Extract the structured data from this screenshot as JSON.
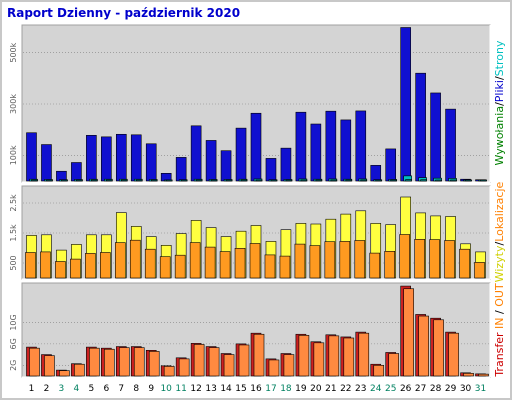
{
  "title": "Raport Dzienny -  październik 2020",
  "colors": {
    "background": "#ffffff",
    "frame": "#c8c8c8",
    "plot_bg": "#d4d4d4",
    "title": "#0000cc",
    "grid": "#808080",
    "weekday_label": "#000000",
    "weekend_label": "#008060",
    "hits": "#1010d0",
    "files": "#00c0c0",
    "pages": "#0a8a8a",
    "visits": "#ffff40",
    "sites": "#ff9a20",
    "kbin": "#cc2020",
    "kbout": "#ff8a40"
  },
  "right_labels": {
    "top": [
      {
        "text": "Wywołania",
        "color": "#008000"
      },
      {
        "text": "/",
        "color": "#000000"
      },
      {
        "text": "Pliki",
        "color": "#0000cc"
      },
      {
        "text": "/",
        "color": "#000000"
      },
      {
        "text": "Strony",
        "color": "#00c0c0"
      }
    ],
    "middle": [
      {
        "text": "Wizyty",
        "color": "#d0d000"
      },
      {
        "text": "/",
        "color": "#000000"
      },
      {
        "text": "Lokalizacje",
        "color": "#ff8000"
      }
    ],
    "bottom": [
      {
        "text": "Transfer",
        "color": "#cc0000"
      },
      {
        "text": " IN ",
        "color": "#ff8000"
      },
      {
        "text": "/",
        "color": "#000000"
      },
      {
        "text": " OUT",
        "color": "#ff8000"
      }
    ]
  },
  "chart_data": [
    {
      "type": "bar",
      "name": "hits-files-pages",
      "categories": [
        "1",
        "2",
        "3",
        "4",
        "5",
        "6",
        "7",
        "8",
        "9",
        "10",
        "11",
        "12",
        "13",
        "14",
        "15",
        "16",
        "17",
        "18",
        "19",
        "20",
        "21",
        "22",
        "23",
        "24",
        "25",
        "26",
        "27",
        "28",
        "29",
        "30",
        "31"
      ],
      "weekend": [
        3,
        4,
        10,
        11,
        17,
        18,
        24,
        25,
        31
      ],
      "ylim": [
        0,
        600000
      ],
      "yticks": [
        {
          "v": 100000,
          "label": "100k"
        },
        {
          "v": 300000,
          "label": "300k"
        },
        {
          "v": 500000,
          "label": "500k"
        }
      ],
      "series": [
        {
          "name": "Wywołania",
          "color_key": "hits",
          "values": [
            188000,
            142000,
            38000,
            72000,
            178000,
            172000,
            182000,
            180000,
            145000,
            30000,
            92000,
            215000,
            158000,
            118000,
            206000,
            264000,
            88000,
            128000,
            268000,
            222000,
            272000,
            238000,
            273000,
            61000,
            125000,
            598000,
            420000,
            343000,
            280000,
            7000,
            5000
          ]
        },
        {
          "name": "Pliki",
          "color_key": "files",
          "values": [
            7000,
            6000,
            5000,
            6000,
            7000,
            7000,
            7000,
            7000,
            6000,
            4000,
            5000,
            7000,
            6000,
            6000,
            7000,
            8000,
            5000,
            6000,
            8000,
            7000,
            8000,
            7000,
            8000,
            5000,
            6000,
            20000,
            13000,
            11000,
            10000,
            3000,
            2000
          ]
        },
        {
          "name": "Strony",
          "color_key": "pages",
          "values": [
            3000,
            3000,
            2000,
            2000,
            3000,
            3000,
            3000,
            3000,
            3000,
            2000,
            2000,
            3000,
            3000,
            3000,
            3000,
            3000,
            2000,
            3000,
            3000,
            3000,
            3000,
            3000,
            3000,
            2000,
            3000,
            6000,
            5000,
            4000,
            4000,
            1000,
            1000
          ]
        }
      ]
    },
    {
      "type": "bar",
      "name": "visits-sites",
      "categories": [
        "1",
        "2",
        "3",
        "4",
        "5",
        "6",
        "7",
        "8",
        "9",
        "10",
        "11",
        "12",
        "13",
        "14",
        "15",
        "16",
        "17",
        "18",
        "19",
        "20",
        "21",
        "22",
        "23",
        "24",
        "25",
        "26",
        "27",
        "28",
        "29",
        "30",
        "31"
      ],
      "weekend": [
        3,
        4,
        10,
        11,
        17,
        18,
        24,
        25,
        31
      ],
      "ylim": [
        0,
        3000
      ],
      "yticks": [
        {
          "v": 500,
          "label": "500"
        },
        {
          "v": 1500,
          "label": "1.5k"
        },
        {
          "v": 2500,
          "label": "2.5k"
        }
      ],
      "series": [
        {
          "name": "Wizyty",
          "color_key": "visits",
          "values": [
            1420,
            1440,
            930,
            1120,
            1440,
            1440,
            2180,
            1720,
            1380,
            1090,
            1480,
            1920,
            1680,
            1380,
            1560,
            1750,
            1220,
            1610,
            1820,
            1800,
            1960,
            2130,
            2240,
            1820,
            1780,
            2700,
            2170,
            2070,
            2050,
            1140,
            870
          ]
        },
        {
          "name": "Lokalizacje",
          "color_key": "sites",
          "values": [
            850,
            870,
            550,
            630,
            820,
            850,
            1180,
            1260,
            960,
            710,
            760,
            1180,
            1030,
            880,
            990,
            1150,
            770,
            730,
            1130,
            1080,
            1210,
            1220,
            1250,
            830,
            890,
            1450,
            1290,
            1280,
            1250,
            960,
            520
          ]
        }
      ]
    },
    {
      "type": "bar",
      "name": "transfer",
      "categories": [
        "1",
        "2",
        "3",
        "4",
        "5",
        "6",
        "7",
        "8",
        "9",
        "10",
        "11",
        "12",
        "13",
        "14",
        "15",
        "16",
        "17",
        "18",
        "19",
        "20",
        "21",
        "22",
        "23",
        "24",
        "25",
        "26",
        "27",
        "28",
        "29",
        "30",
        "31"
      ],
      "weekend": [
        3,
        4,
        10,
        11,
        17,
        18,
        24,
        25,
        31
      ],
      "ylim": [
        0,
        17000
      ],
      "yticks": [
        {
          "v": 2000,
          "label": "2G"
        },
        {
          "v": 6000,
          "label": "6G"
        },
        {
          "v": 10000,
          "label": "10G"
        }
      ],
      "series": [
        {
          "name": "IN",
          "color_key": "kbin",
          "values": [
            5400,
            4000,
            1100,
            2300,
            5400,
            5200,
            5500,
            5500,
            4800,
            1900,
            3400,
            6100,
            5500,
            4200,
            6000,
            8000,
            3200,
            4200,
            7800,
            6400,
            7700,
            7300,
            8200,
            2200,
            4400,
            16800,
            11500,
            10800,
            8200,
            600,
            400
          ]
        },
        {
          "name": "OUT",
          "color_key": "kbout",
          "values": [
            5200,
            3800,
            1000,
            2200,
            5200,
            5000,
            5300,
            5300,
            4600,
            1800,
            3200,
            5900,
            5300,
            4000,
            5800,
            7800,
            3000,
            4000,
            7600,
            6200,
            7500,
            7100,
            8000,
            2000,
            4200,
            16300,
            11200,
            10500,
            8000,
            500,
            350
          ]
        }
      ]
    }
  ]
}
